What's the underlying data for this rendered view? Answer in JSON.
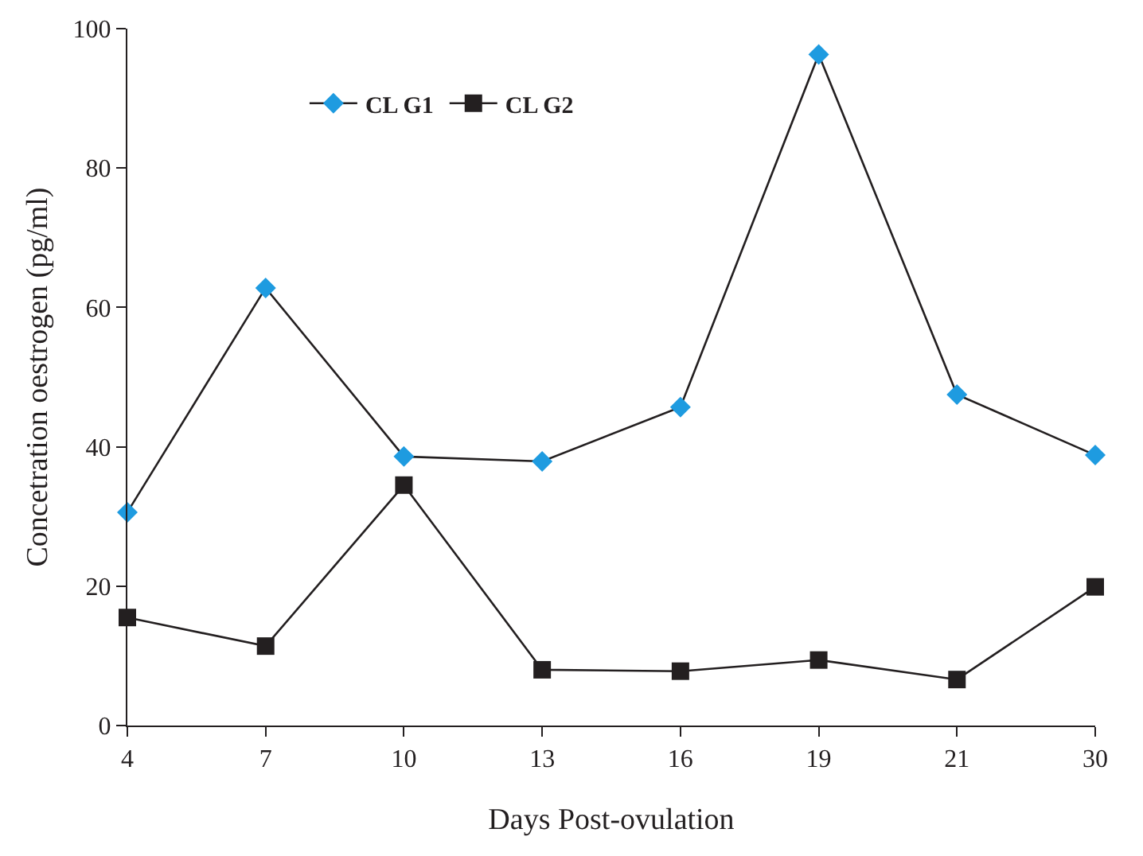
{
  "chart_data": {
    "type": "line",
    "xlabel": "Days Post-ovulation",
    "ylabel": "Concetration oestrogen (pg/ml)",
    "categories": [
      "4",
      "7",
      "10",
      "13",
      "16",
      "19",
      "21",
      "30"
    ],
    "series": [
      {
        "name": "CL G1",
        "color": "#1e9be0",
        "marker": "diamond",
        "values": [
          30.6,
          62.8,
          38.6,
          37.9,
          45.7,
          96.3,
          47.5,
          38.8
        ]
      },
      {
        "name": "CL G2",
        "color": "#231f20",
        "marker": "square",
        "values": [
          15.5,
          11.4,
          34.5,
          8.0,
          7.8,
          9.4,
          6.6,
          19.9
        ]
      }
    ],
    "ylim": [
      0,
      100
    ],
    "yticks": [
      0,
      20,
      40,
      60,
      80,
      100
    ],
    "legend": "top left",
    "line_style": "solid"
  }
}
